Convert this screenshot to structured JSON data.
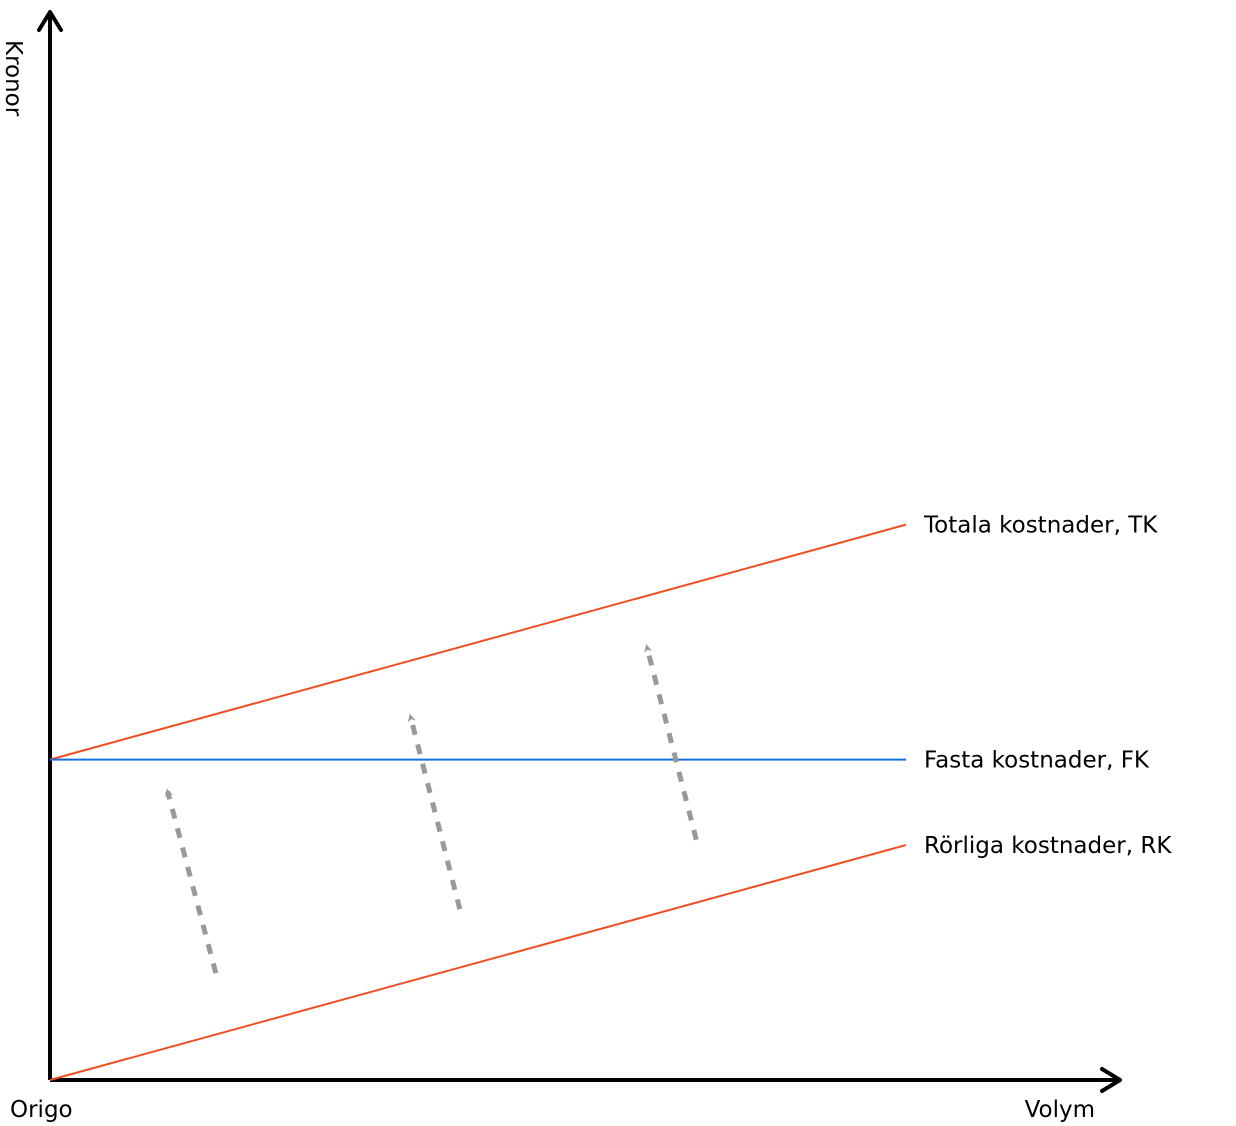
{
  "chart_data": {
    "type": "line",
    "title": "",
    "xlabel": "Volym",
    "ylabel": "Kronor",
    "origin_label": "Origo",
    "xlim": [
      0,
      100
    ],
    "ylim": [
      0,
      100
    ],
    "grid": false,
    "legend": "inline-right",
    "series": [
      {
        "name": "Totala kostnader, TK",
        "color": "#f04e23",
        "x": [
          0,
          80
        ],
        "y": [
          30,
          52
        ]
      },
      {
        "name": "Fasta kostnader, FK",
        "color": "#1a6fe0",
        "x": [
          0,
          80
        ],
        "y": [
          30,
          30
        ]
      },
      {
        "name": "Rörliga kostnader, RK",
        "color": "#f04e23",
        "x": [
          0,
          80
        ],
        "y": [
          0,
          22
        ]
      }
    ],
    "annotations": {
      "color": "#999999",
      "arrows": [
        {
          "from": [
            15.5,
            10
          ],
          "to": [
            11,
            27
          ]
        },
        {
          "from": [
            38.3,
            16
          ],
          "to": [
            33.7,
            34
          ]
        },
        {
          "from": [
            60.4,
            22.5
          ],
          "to": [
            55.8,
            40.5
          ]
        }
      ]
    }
  }
}
